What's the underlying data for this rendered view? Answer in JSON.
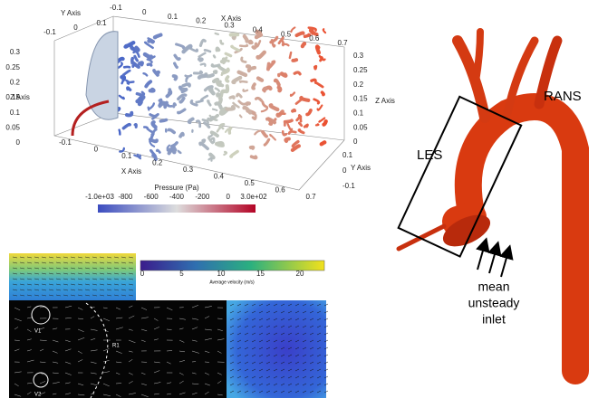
{
  "pressure_plot": {
    "axis_labels": {
      "x_top": "X Axis",
      "x_bottom": "X Axis",
      "y_left": "Y Axis",
      "y_right": "Y Axis",
      "z_left": "Z Axis",
      "z_right": "Z Axis"
    },
    "x_ticks_top": [
      "-0.1",
      "0",
      "0.1",
      "0.2",
      "0.3",
      "0.4",
      "0.5",
      "0.6",
      "0.7"
    ],
    "x_ticks_bottom": [
      "-0.1",
      "0",
      "0.1",
      "0.2",
      "0.3",
      "0.4",
      "0.5",
      "0.6",
      "0.7"
    ],
    "z_ticks_left": [
      "0.3",
      "0.25",
      "0.2",
      "0.15",
      "0.1",
      "0.05",
      "0"
    ],
    "z_ticks_right": [
      "0.3",
      "0.25",
      "0.2",
      "0.15",
      "0.1",
      "0.05",
      "0"
    ],
    "y_ticks_left": [
      "-0.1",
      "0",
      "0.1"
    ],
    "y_ticks_right": [
      "0.1",
      "0",
      "-0.1"
    ],
    "colorbar": {
      "title": "Pressure (Pa)",
      "ticks": [
        "-1.0e+03",
        "-800",
        "-600",
        "-400",
        "-200",
        "0",
        "3.0e+02"
      ]
    }
  },
  "aorta": {
    "les": "LES",
    "rans": "RANS",
    "inlet": [
      "mean",
      "unsteady",
      "inlet"
    ]
  },
  "velocity_plot": {
    "colorbar": {
      "title": "Average velocity (m/s)",
      "ticks": [
        "0",
        "5",
        "10",
        "15",
        "20"
      ]
    },
    "vortex_labels": [
      "V1",
      "V2"
    ],
    "region_label": "R1"
  }
}
